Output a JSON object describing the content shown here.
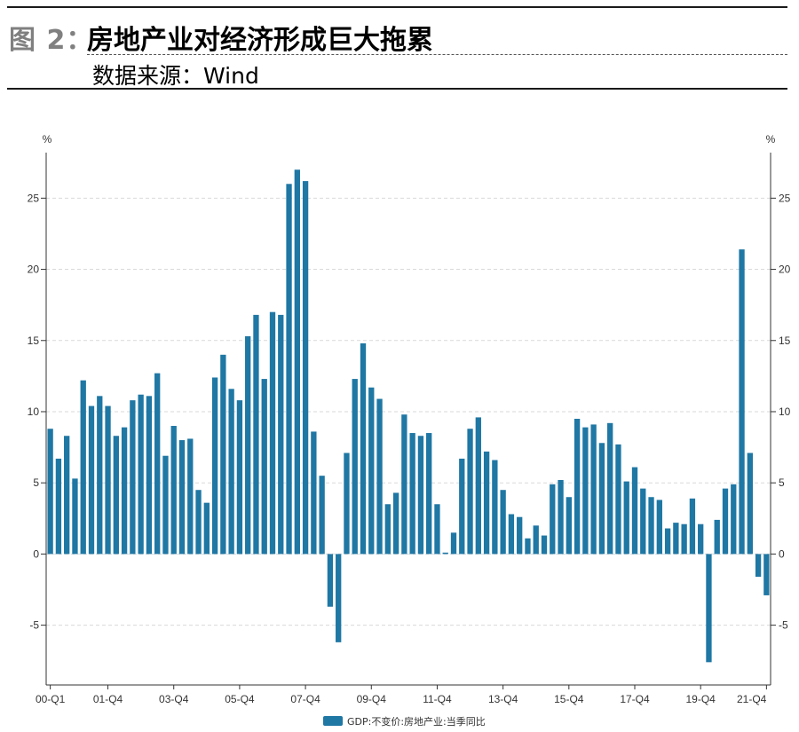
{
  "header": {
    "figure_label": "图 2：",
    "title": "房地产业对经济形成巨大拖累",
    "source": "数据来源：Wind"
  },
  "colors": {
    "bar": "#1f77a4",
    "axis": "#333333",
    "grid": "#d9d9d9",
    "figure_label": "#808080"
  },
  "chart_data": {
    "type": "bar",
    "title": "",
    "left_unit": "%",
    "right_unit": "%",
    "ylim": [
      -9.2,
      28.2
    ],
    "yticks": [
      -5,
      0,
      5,
      10,
      15,
      20,
      25
    ],
    "grid": true,
    "legend_position": "bottom-center",
    "x_tick_labels": [
      "00-Q1",
      "01-Q4",
      "03-Q4",
      "05-Q4",
      "07-Q4",
      "09-Q4",
      "11-Q4",
      "13-Q4",
      "15-Q4",
      "17-Q4",
      "19-Q4",
      "21-Q4"
    ],
    "x_tick_label_indices": [
      0,
      7,
      15,
      23,
      31,
      39,
      47,
      55,
      63,
      71,
      79,
      87
    ],
    "series": [
      {
        "name": "GDP:不变价:房地产业:当季同比",
        "values": [
          8.8,
          6.7,
          8.3,
          5.3,
          12.2,
          10.4,
          11.1,
          10.4,
          8.3,
          8.9,
          10.8,
          11.2,
          11.1,
          12.7,
          6.9,
          9.0,
          8.0,
          8.1,
          4.5,
          3.6,
          12.4,
          14.0,
          11.6,
          10.8,
          15.3,
          16.8,
          12.3,
          17.0,
          16.8,
          26.0,
          27.0,
          26.2,
          8.6,
          5.5,
          -3.7,
          -6.2,
          7.1,
          12.3,
          14.8,
          11.7,
          10.9,
          3.5,
          4.3,
          9.8,
          8.5,
          8.3,
          8.5,
          3.5,
          0.1,
          1.5,
          6.7,
          8.8,
          9.6,
          7.2,
          6.6,
          4.5,
          2.8,
          2.6,
          1.1,
          2.0,
          1.3,
          4.9,
          5.2,
          4.0,
          9.5,
          8.9,
          9.1,
          7.8,
          9.2,
          7.7,
          5.1,
          6.1,
          4.6,
          4.0,
          3.8,
          1.8,
          2.2,
          2.1,
          3.9,
          2.1,
          -7.6,
          2.4,
          4.6,
          4.9,
          21.4,
          7.1,
          -1.6,
          -2.9
        ]
      }
    ]
  }
}
